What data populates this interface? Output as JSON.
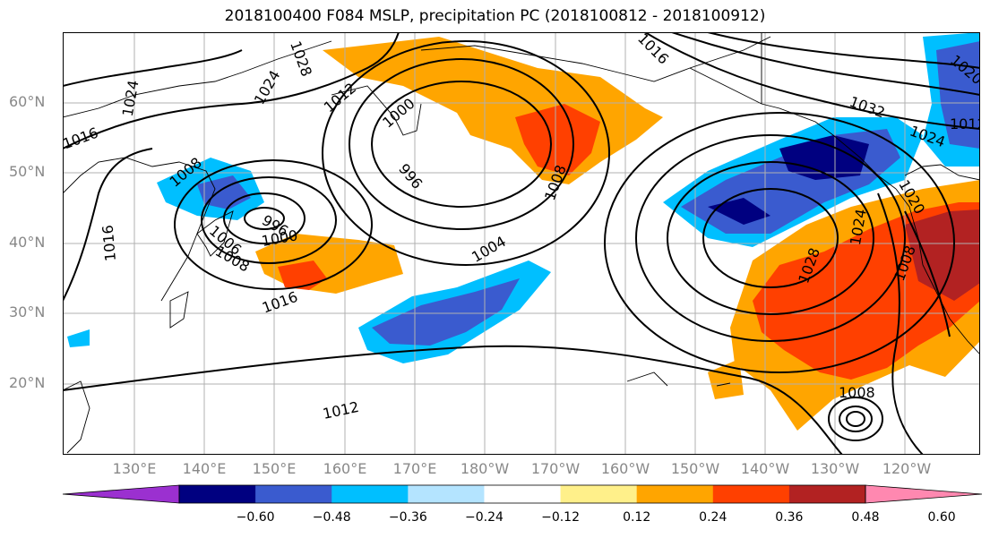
{
  "title": "2018100400 F084 MSLP, precipitation PC (2018100812 - 2018100912)",
  "lat_ticks": [
    "60°N",
    "50°N",
    "40°N",
    "30°N",
    "20°N"
  ],
  "lon_ticks": [
    "130°E",
    "140°E",
    "150°E",
    "160°E",
    "170°E",
    "180°W",
    "170°W",
    "160°W",
    "150°W",
    "140°W",
    "130°W",
    "120°W"
  ],
  "isobar_labels": [
    "1024",
    "1028",
    "1016",
    "1012",
    "1000",
    "996",
    "1008",
    "1004",
    "1016",
    "1012",
    "1016",
    "1024",
    "1020",
    "1032",
    "1024",
    "1008",
    "1028",
    "1024",
    "1020",
    "1008",
    "1012",
    "1008",
    "1006",
    "1000",
    "996",
    "1016",
    "1008",
    "1016",
    "1012",
    "1008"
  ],
  "colorbar": {
    "colors": [
      "#9b30d0",
      "#000080",
      "#3a5bcf",
      "#00bfff",
      "#b4e4ff",
      "#ffffff",
      "#fff08a",
      "#ffa500",
      "#ff4000",
      "#b22222",
      "#ff88b0"
    ],
    "labels": [
      "−0.60",
      "−0.48",
      "−0.36",
      "−0.24",
      "−0.12",
      "0.12",
      "0.24",
      "0.36",
      "0.48",
      "0.60"
    ]
  }
}
